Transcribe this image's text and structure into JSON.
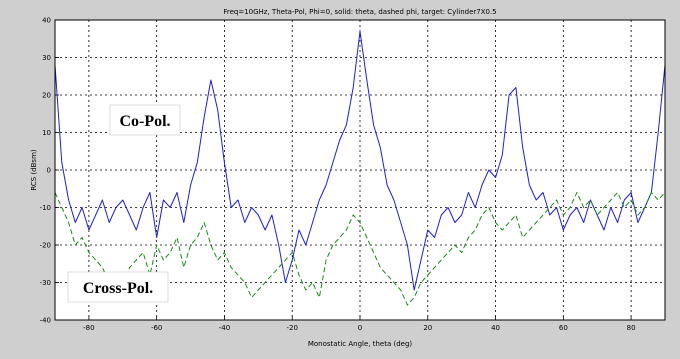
{
  "chart_data": {
    "type": "line",
    "title": "Freq=10GHz, Theta-Pol, Phi=0, solid: theta, dashed phi, target: Cylinder7X0.5",
    "xlabel": "Monostatic Angle, theta (deg)",
    "ylabel": "RCS (dBsm)",
    "xlim": [
      -90,
      90
    ],
    "ylim": [
      -40,
      40
    ],
    "xticks": [
      -80,
      -60,
      -40,
      -20,
      0,
      20,
      40,
      60,
      80
    ],
    "yticks": [
      -40,
      -30,
      -20,
      -10,
      0,
      10,
      20,
      30,
      40
    ],
    "xtick_labels": [
      "-80",
      "-60",
      "-40",
      "-20",
      "0",
      "20",
      "40",
      "60",
      "80"
    ],
    "ytick_labels": [
      "-40",
      "-30",
      "-20",
      "-10",
      "0",
      "10",
      "20",
      "30",
      "40"
    ],
    "grid": true,
    "annotations": [
      {
        "text": "Co-Pol.",
        "x": -70,
        "y": 24
      },
      {
        "text": "Cross-Pol.",
        "x": -70,
        "y": -35
      }
    ],
    "series": [
      {
        "color": "#1f1fd6",
        "style": "solid",
        "x": [
          -90,
          -88,
          -86,
          -84,
          -82,
          -80,
          -78,
          -76,
          -74,
          -72,
          -70,
          -68,
          -66,
          -64,
          -62,
          -60,
          -58,
          -56,
          -54,
          -52,
          -50,
          -48,
          -46,
          -44,
          -42,
          -40,
          -38,
          -36,
          -34,
          -32,
          -30,
          -28,
          -26,
          -24,
          -22,
          -20,
          -18,
          -16,
          -14,
          -12,
          -10,
          -8,
          -6,
          -4,
          -2,
          0,
          2,
          4,
          6,
          8,
          10,
          12,
          14,
          16,
          18,
          20,
          22,
          24,
          26,
          28,
          30,
          32,
          34,
          36,
          38,
          40,
          42,
          44,
          46,
          48,
          50,
          52,
          54,
          56,
          58,
          60,
          62,
          64,
          66,
          68,
          70,
          72,
          74,
          76,
          78,
          80,
          82,
          84,
          86,
          88,
          90
        ],
        "y": [
          28,
          2,
          -8,
          -14,
          -10,
          -16,
          -12,
          -8,
          -14,
          -10,
          -8,
          -12,
          -16,
          -10,
          -6,
          -18,
          -8,
          -10,
          -6,
          -14,
          -4,
          2,
          14,
          24,
          16,
          2,
          -10,
          -8,
          -14,
          -10,
          -12,
          -16,
          -12,
          -20,
          -30,
          -24,
          -16,
          -20,
          -14,
          -8,
          -4,
          2,
          8,
          12,
          22,
          37,
          24,
          12,
          6,
          -4,
          -8,
          -14,
          -20,
          -32,
          -24,
          -16,
          -18,
          -12,
          -10,
          -14,
          -12,
          -6,
          -10,
          -4,
          0,
          -2,
          4,
          20,
          22,
          6,
          -4,
          -8,
          -6,
          -12,
          -10,
          -16,
          -12,
          -10,
          -14,
          -8,
          -12,
          -16,
          -10,
          -14,
          -8,
          -6,
          -14,
          -10,
          -6,
          10,
          28
        ]
      },
      {
        "color": "#1a8a1a",
        "style": "dashed",
        "x": [
          -90,
          -88,
          -86,
          -84,
          -82,
          -80,
          -78,
          -76,
          -74,
          -72,
          -70,
          -68,
          -66,
          -64,
          -62,
          -60,
          -58,
          -56,
          -54,
          -52,
          -50,
          -48,
          -46,
          -44,
          -42,
          -40,
          -38,
          -36,
          -34,
          -32,
          -30,
          -28,
          -26,
          -24,
          -22,
          -20,
          -18,
          -16,
          -14,
          -12,
          -10,
          -8,
          -6,
          -4,
          -2,
          0,
          2,
          4,
          6,
          8,
          10,
          12,
          14,
          16,
          18,
          20,
          22,
          24,
          26,
          28,
          30,
          32,
          34,
          36,
          38,
          40,
          42,
          44,
          46,
          48,
          50,
          52,
          54,
          56,
          58,
          60,
          62,
          64,
          66,
          68,
          70,
          72,
          74,
          76,
          78,
          80,
          82,
          84,
          86,
          88,
          90
        ],
        "y": [
          -6,
          -10,
          -14,
          -20,
          -18,
          -22,
          -24,
          -26,
          -30,
          -28,
          -32,
          -26,
          -24,
          -22,
          -28,
          -20,
          -24,
          -22,
          -18,
          -26,
          -20,
          -18,
          -14,
          -20,
          -24,
          -22,
          -26,
          -28,
          -30,
          -34,
          -32,
          -30,
          -28,
          -26,
          -24,
          -22,
          -28,
          -32,
          -30,
          -34,
          -24,
          -20,
          -18,
          -16,
          -12,
          -14,
          -18,
          -22,
          -26,
          -28,
          -30,
          -32,
          -36,
          -34,
          -30,
          -28,
          -26,
          -24,
          -22,
          -20,
          -22,
          -18,
          -16,
          -12,
          -10,
          -14,
          -16,
          -14,
          -12,
          -18,
          -16,
          -14,
          -12,
          -10,
          -8,
          -12,
          -10,
          -6,
          -10,
          -8,
          -12,
          -10,
          -8,
          -6,
          -10,
          -8,
          -12,
          -10,
          -6,
          -8,
          -6
        ]
      }
    ]
  }
}
